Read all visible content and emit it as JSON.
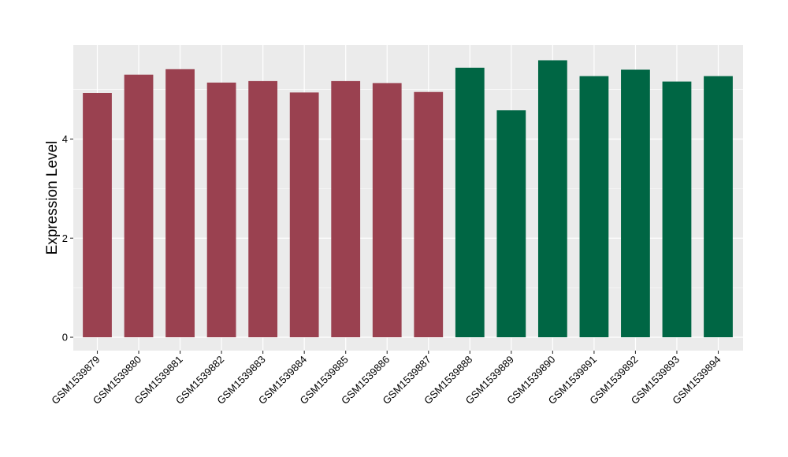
{
  "chart_data": {
    "type": "bar",
    "ylabel": "Expression Level",
    "xlabel": "",
    "ylim": [
      -0.27,
      5.9
    ],
    "yticks": [
      0,
      2,
      4
    ],
    "grid": true,
    "legend": "none",
    "categories": [
      "GSM1539879",
      "GSM1539880",
      "GSM1539881",
      "GSM1539882",
      "GSM1539883",
      "GSM1539884",
      "GSM1539885",
      "GSM1539886",
      "GSM1539887",
      "GSM1539888",
      "GSM1539889",
      "GSM1539890",
      "GSM1539891",
      "GSM1539892",
      "GSM1539893",
      "GSM1539894"
    ],
    "values": [
      4.93,
      5.3,
      5.41,
      5.14,
      5.17,
      4.94,
      5.17,
      5.13,
      4.95,
      5.44,
      4.58,
      5.59,
      5.27,
      5.4,
      5.16,
      5.27
    ],
    "group_of_bar": [
      0,
      0,
      0,
      0,
      0,
      0,
      0,
      0,
      0,
      1,
      1,
      1,
      1,
      1,
      1,
      1
    ],
    "group_colors": [
      "#9a4150",
      "#006644"
    ],
    "panel_background": "#ebebeb",
    "grid_color": "#ffffff"
  }
}
